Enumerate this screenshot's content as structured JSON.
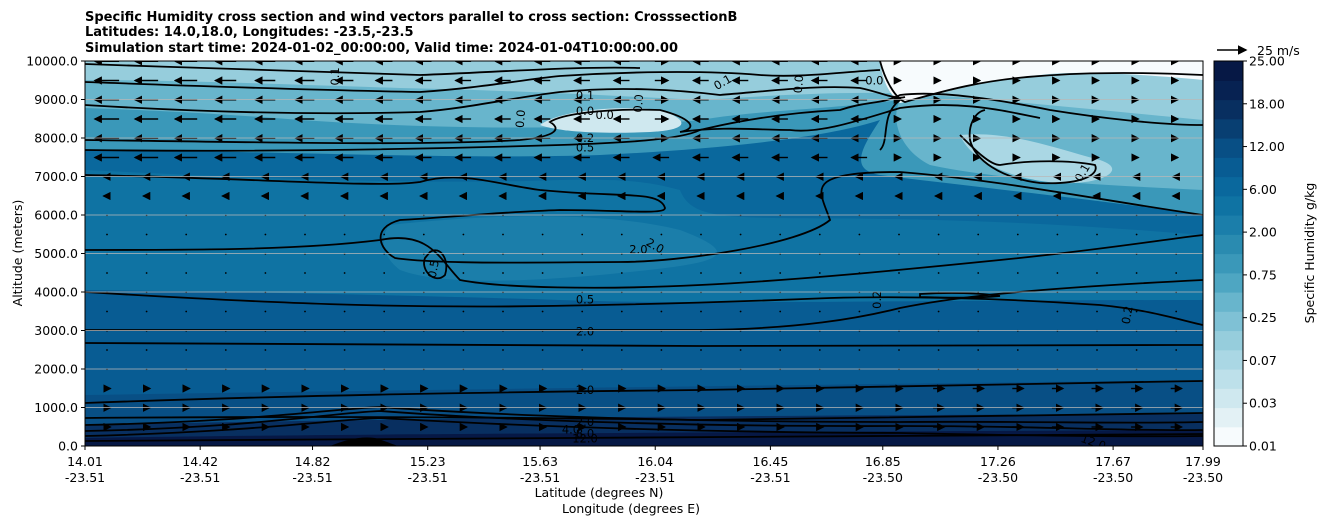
{
  "chart_data": {
    "type": "contour",
    "title_lines": [
      "Specific Humidity cross section and wind vectors parallel to cross section: CrosssectionB",
      "Latitudes: 14.0,18.0, Longitudes: -23.5,-23.5",
      "Simulation start time: 2024-01-02_00:00:00, Valid time: 2024-01-04T10:00:00.00"
    ],
    "ylabel": "Altitude (meters)",
    "xlabel_lat": "Latitude (degrees N)",
    "xlabel_lon": "Longitude (degrees E)",
    "ylim": [
      0,
      10000
    ],
    "y_ticks": [
      "0.0",
      "1000.0",
      "2000.0",
      "3000.0",
      "4000.0",
      "5000.0",
      "6000.0",
      "7000.0",
      "8000.0",
      "9000.0",
      "10000.0"
    ],
    "x_ticks": [
      {
        "lat": "14.01",
        "lon": "-23.51"
      },
      {
        "lat": "14.42",
        "lon": "-23.51"
      },
      {
        "lat": "14.82",
        "lon": "-23.51"
      },
      {
        "lat": "15.23",
        "lon": "-23.51"
      },
      {
        "lat": "15.63",
        "lon": "-23.51"
      },
      {
        "lat": "16.04",
        "lon": "-23.51"
      },
      {
        "lat": "16.45",
        "lon": "-23.51"
      },
      {
        "lat": "16.85",
        "lon": "-23.50"
      },
      {
        "lat": "17.26",
        "lon": "-23.50"
      },
      {
        "lat": "17.67",
        "lon": "-23.50"
      },
      {
        "lat": "17.99",
        "lon": "-23.50"
      }
    ],
    "colorbar": {
      "label": "Specific Humidity g/kg",
      "ticks": [
        "0.01",
        "0.03",
        "0.07",
        "0.25",
        "0.75",
        "2.00",
        "6.00",
        "12.00",
        "18.00",
        "25.00"
      ],
      "colors": [
        "#f7fbfd",
        "#e3f1f5",
        "#cfe8ef",
        "#bde0ea",
        "#aad7e4",
        "#96cddc",
        "#7fc1d5",
        "#68b5cc",
        "#4ea6c2",
        "#3a98b9",
        "#2a8bb0",
        "#1b7eaa",
        "#0f73a3",
        "#0a689d",
        "#085c93",
        "#084f85",
        "#083f72",
        "#082f60",
        "#072252",
        "#061845"
      ]
    },
    "quiver_key": "25 m/s",
    "contour_labels": [
      {
        "text": "0.1",
        "lat": 14.9,
        "alt": 9600,
        "rot": -90
      },
      {
        "text": "0.1",
        "lat": 15.79,
        "alt": 9100,
        "rot": 0
      },
      {
        "text": "0.1",
        "lat": 16.28,
        "alt": 9450,
        "rot": -30
      },
      {
        "text": "0.0",
        "lat": 15.79,
        "alt": 8700,
        "rot": 0
      },
      {
        "text": "0.0",
        "lat": 15.86,
        "alt": 8600,
        "rot": 0
      },
      {
        "text": "0.0",
        "lat": 15.56,
        "alt": 8500,
        "rot": -85
      },
      {
        "text": "0.0",
        "lat": 15.98,
        "alt": 8900,
        "rot": -85
      },
      {
        "text": "0.0",
        "lat": 16.55,
        "alt": 9400,
        "rot": -85
      },
      {
        "text": "0.0",
        "lat": 16.82,
        "alt": 9500,
        "rot": 0
      },
      {
        "text": "0.2",
        "lat": 15.79,
        "alt": 8000,
        "rot": 0
      },
      {
        "text": "0.5",
        "lat": 15.79,
        "alt": 7750,
        "rot": 0
      },
      {
        "text": "0.1",
        "lat": 17.56,
        "alt": 7100,
        "rot": -60
      },
      {
        "text": "2.0",
        "lat": 15.98,
        "alt": 5100,
        "rot": 0
      },
      {
        "text": "2.0",
        "lat": 16.04,
        "alt": 5200,
        "rot": 30
      },
      {
        "text": "0.5",
        "lat": 15.25,
        "alt": 4600,
        "rot": -80
      },
      {
        "text": "0.5",
        "lat": 15.79,
        "alt": 3800,
        "rot": 0
      },
      {
        "text": "0.2",
        "lat": 16.83,
        "alt": 3800,
        "rot": -90
      },
      {
        "text": "0.2",
        "lat": 17.72,
        "alt": 3400,
        "rot": -80
      },
      {
        "text": "2.0",
        "lat": 15.79,
        "alt": 2980,
        "rot": 0
      },
      {
        "text": "2.0",
        "lat": 15.79,
        "alt": 1450,
        "rot": 0
      },
      {
        "text": "2.0",
        "lat": 15.79,
        "alt": 620,
        "rot": 0
      },
      {
        "text": "4.0",
        "lat": 15.74,
        "alt": 430,
        "rot": 0
      },
      {
        "text": "8.0",
        "lat": 15.79,
        "alt": 330,
        "rot": 0
      },
      {
        "text": "12.0",
        "lat": 15.79,
        "alt": 200,
        "rot": 0
      },
      {
        "text": "12.0",
        "lat": 17.6,
        "alt": 100,
        "rot": 20
      }
    ]
  }
}
